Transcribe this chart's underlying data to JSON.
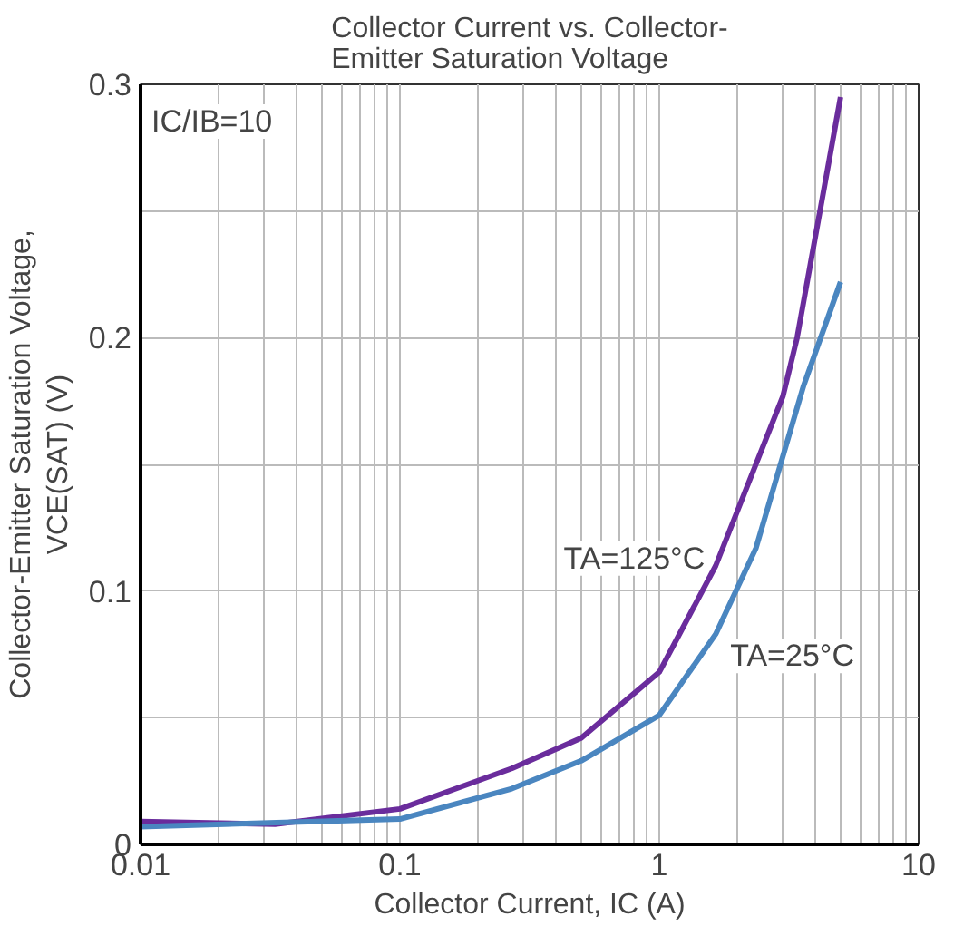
{
  "chart_data": {
    "type": "line",
    "title": "Collector Current vs. Collector-\nEmitter Saturation Voltage",
    "xlabel": "Collector Current, IC (A)",
    "ylabel": "Collector-Emitter Saturation Voltage,\nVCE(SAT) (V)",
    "log": "x",
    "grid": true,
    "line_style": "solid",
    "xlim": [
      0.01,
      10
    ],
    "ylim": [
      0,
      0.3
    ],
    "xticks": [
      {
        "value": 0.01,
        "label": "0.01"
      },
      {
        "value": 0.02,
        "label": null
      },
      {
        "value": 0.03,
        "label": null
      },
      {
        "value": 0.04,
        "label": null
      },
      {
        "value": 0.05,
        "label": null
      },
      {
        "value": 0.06,
        "label": null
      },
      {
        "value": 0.07,
        "label": null
      },
      {
        "value": 0.08,
        "label": null
      },
      {
        "value": 0.09,
        "label": null
      },
      {
        "value": 0.1,
        "label": "0.1"
      },
      {
        "value": 0.2,
        "label": null
      },
      {
        "value": 0.3,
        "label": null
      },
      {
        "value": 0.4,
        "label": null
      },
      {
        "value": 0.5,
        "label": null
      },
      {
        "value": 0.6,
        "label": null
      },
      {
        "value": 0.7,
        "label": null
      },
      {
        "value": 0.8,
        "label": null
      },
      {
        "value": 0.9,
        "label": null
      },
      {
        "value": 1,
        "label": "1"
      },
      {
        "value": 2,
        "label": null
      },
      {
        "value": 3,
        "label": null
      },
      {
        "value": 4,
        "label": null
      },
      {
        "value": 5,
        "label": null
      },
      {
        "value": 6,
        "label": null
      },
      {
        "value": 7,
        "label": null
      },
      {
        "value": 8,
        "label": null
      },
      {
        "value": 9,
        "label": null
      },
      {
        "value": 10,
        "label": "10"
      }
    ],
    "yticks": [
      0,
      {
        "value": 0.05,
        "label": null
      },
      0.1,
      {
        "value": 0.15,
        "label": null
      },
      0.2,
      {
        "value": 0.25,
        "label": null
      },
      0.3
    ],
    "series": [
      {
        "color": "#6a2c9c",
        "x": [
          0.01,
          0.033,
          0.1,
          0.27,
          0.5,
          1,
          1.65,
          3.0,
          3.4,
          5.0
        ],
        "values": [
          0.009,
          0.008,
          0.014,
          0.03,
          0.042,
          0.068,
          0.11,
          0.177,
          0.2,
          0.295
        ]
      },
      {
        "color": "#4a86c0",
        "x": [
          0.01,
          0.1,
          0.27,
          0.5,
          1,
          1.65,
          2.36,
          3.6,
          5.0
        ],
        "values": [
          0.007,
          0.01,
          0.022,
          0.033,
          0.051,
          0.083,
          0.117,
          0.181,
          0.222
        ]
      }
    ],
    "annotations": [
      "IC/IB=10",
      {
        "text": "TA=125°C",
        "x": 1.65,
        "y": 0.11
      },
      {
        "text": "TA=25°C",
        "x": 1.65,
        "y": 0.083
      }
    ]
  }
}
